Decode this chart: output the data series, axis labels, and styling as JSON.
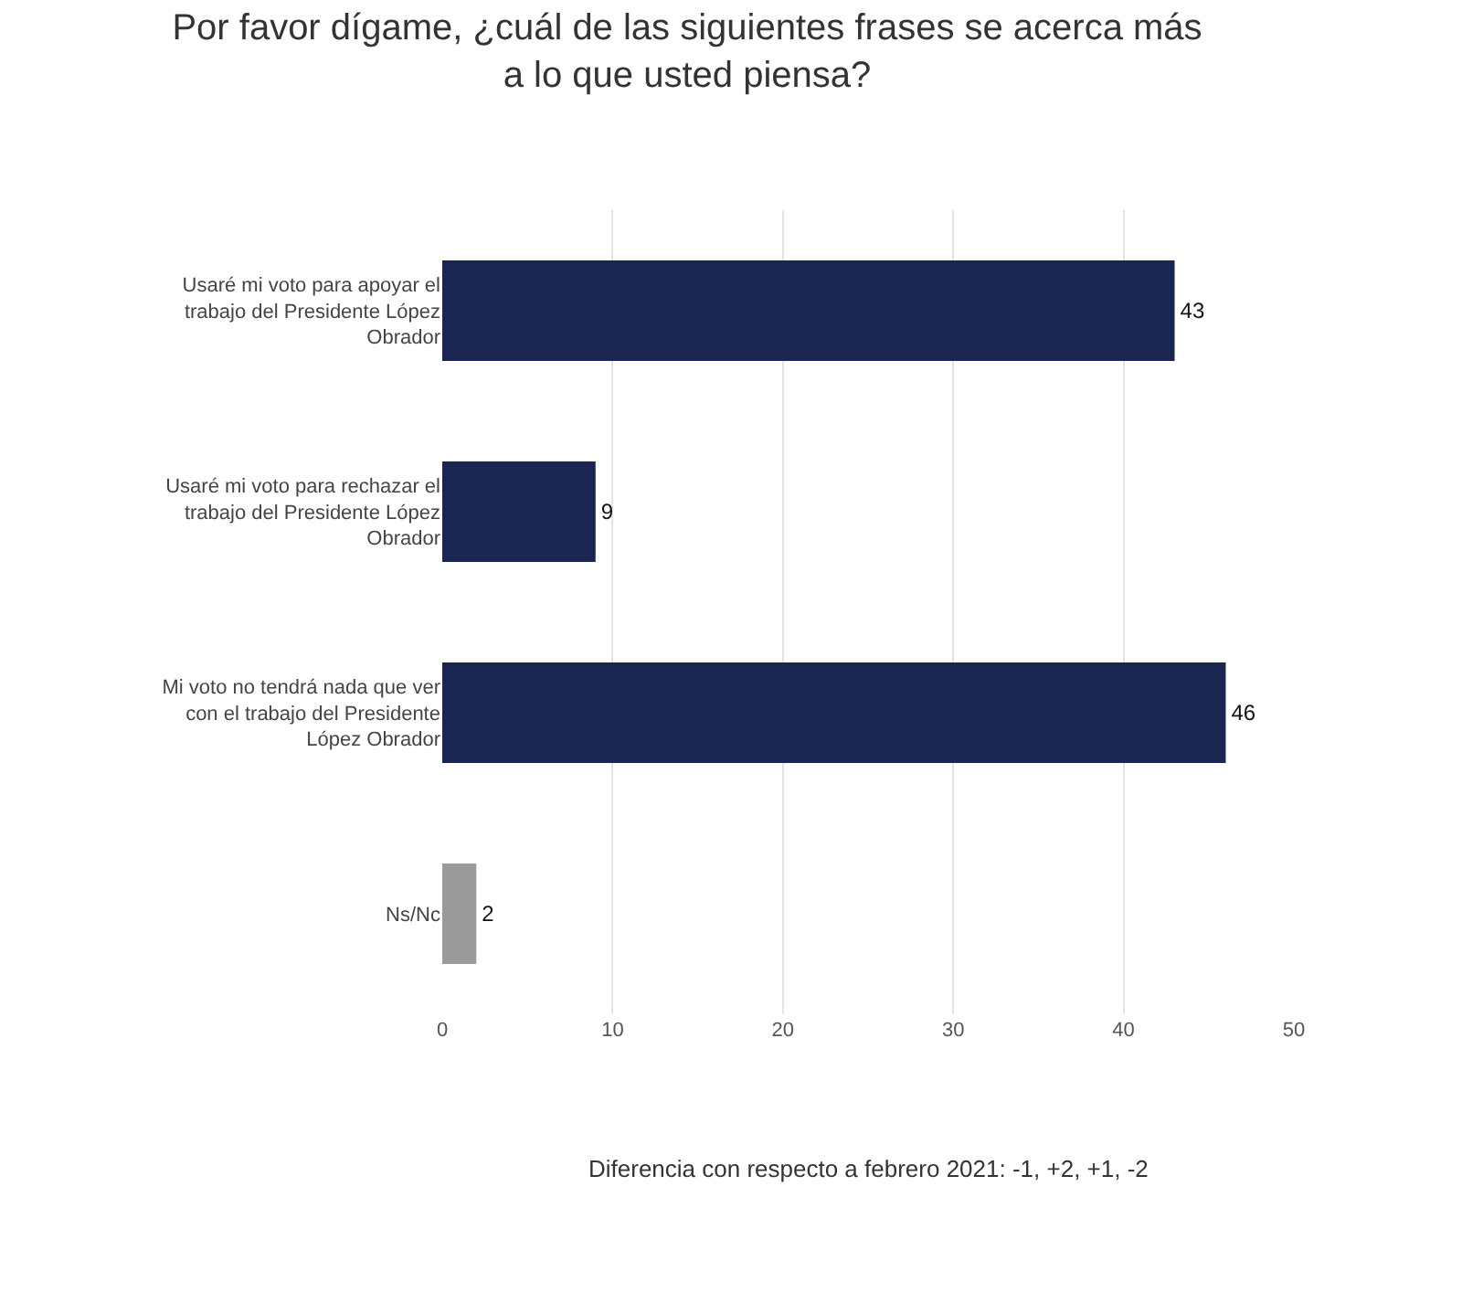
{
  "chart_data": {
    "type": "bar",
    "orientation": "horizontal",
    "title": "Por favor dígame, ¿cuál de las siguientes frases se acerca más a lo que usted piensa?",
    "categories": [
      "Usaré mi voto para apoyar el trabajo del Presidente López Obrador",
      "Usaré mi voto para rechazar el trabajo del Presidente López Obrador",
      "Mi voto no tendrá nada que ver con el trabajo del Presidente López Obrador",
      "Ns/Nc"
    ],
    "values": [
      43,
      9,
      46,
      2
    ],
    "colors": [
      "#1b2551",
      "#1b2551",
      "#1b2551",
      "#9a9a9a"
    ],
    "xlim": [
      0,
      50
    ],
    "xticks": [
      0,
      10,
      20,
      30,
      40,
      50
    ],
    "grid": "x",
    "data_labels": true,
    "annotations": [
      "Diferencia con respecto a febrero 2021: -1, +2, +1, -2"
    ]
  }
}
